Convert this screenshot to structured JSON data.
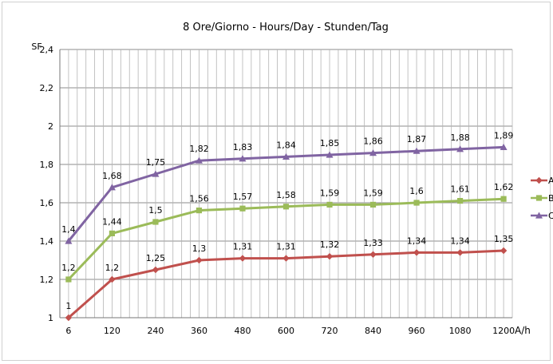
{
  "chart_data": {
    "type": "line",
    "title": "8 Ore/Giorno - Hours/Day - Stunden/Tag",
    "xlabel": "A/h",
    "ylabel": "SF",
    "categories": [
      "6",
      "120",
      "240",
      "360",
      "480",
      "600",
      "720",
      "840",
      "960",
      "1080",
      "1200"
    ],
    "ylim": [
      1,
      2.4
    ],
    "yticks": [
      "1",
      "1,2",
      "1,4",
      "1,6",
      "1,8",
      "2",
      "2,2",
      "2,4"
    ],
    "grid": true,
    "legend_position": "right",
    "series": [
      {
        "name": "A",
        "color": "#c0504d",
        "marker": "diamond",
        "values": [
          1,
          1.2,
          1.25,
          1.3,
          1.31,
          1.31,
          1.32,
          1.33,
          1.34,
          1.34,
          1.35
        ],
        "labels": [
          "1",
          "1,2",
          "1,25",
          "1,3",
          "1,31",
          "1,31",
          "1,32",
          "1,33",
          "1,34",
          "1,34",
          "1,35"
        ]
      },
      {
        "name": "B",
        "color": "#9bbb59",
        "marker": "square",
        "values": [
          1.2,
          1.44,
          1.5,
          1.56,
          1.57,
          1.58,
          1.59,
          1.59,
          1.6,
          1.61,
          1.62
        ],
        "labels": [
          "1,2",
          "1,44",
          "1,5",
          "1,56",
          "1,57",
          "1,58",
          "1,59",
          "1,59",
          "1,6",
          "1,61",
          "1,62"
        ]
      },
      {
        "name": "C",
        "color": "#8064a2",
        "marker": "triangle",
        "values": [
          1.4,
          1.68,
          1.75,
          1.82,
          1.83,
          1.84,
          1.85,
          1.86,
          1.87,
          1.88,
          1.89
        ],
        "labels": [
          "1,4",
          "1,68",
          "1,75",
          "1,82",
          "1,83",
          "1,84",
          "1,85",
          "1,86",
          "1,87",
          "1,88",
          "1,89"
        ]
      }
    ]
  }
}
